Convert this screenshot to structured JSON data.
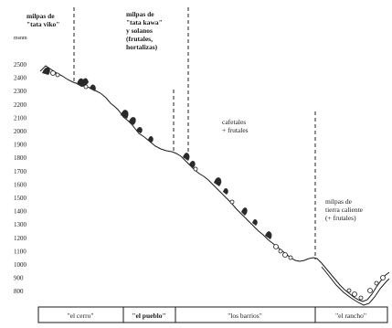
{
  "axis": {
    "unit": "msnm",
    "ticks": [
      "2500",
      "2400",
      "2300",
      "2200",
      "2100",
      "2000",
      "1900",
      "1800",
      "1700",
      "1600",
      "1500",
      "1400",
      "1300",
      "1200",
      "1100",
      "1000",
      "900",
      "800"
    ]
  },
  "top_labels": [
    {
      "lines": [
        "milpas de",
        "\"tata viko\""
      ]
    },
    {
      "lines": [
        "milpas de",
        "\"tata kawa\"",
        "y solanos",
        "(frutales,",
        "hortalizas)"
      ]
    },
    {
      "lines": [
        "cafetales",
        "+ frutales"
      ]
    },
    {
      "lines": [
        "milpas de",
        "tierra caliente",
        "(+ frutales)"
      ]
    }
  ],
  "bottom_labels": [
    "\"el cerro\"",
    "\"el pueblo\"",
    "\"los barrios\"",
    "\"el rancho\""
  ]
}
